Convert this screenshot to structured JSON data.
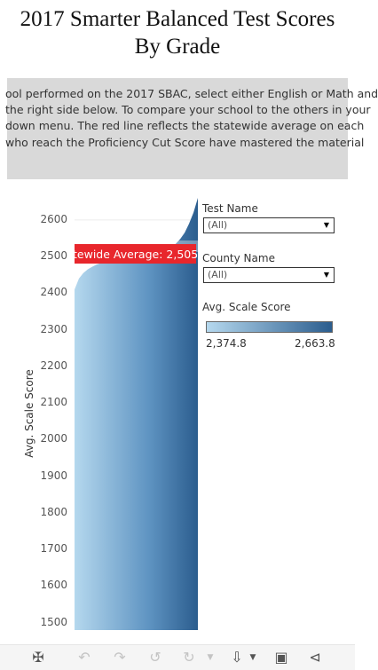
{
  "page": {
    "title_line1": "2017 Smarter Balanced Test Scores",
    "title_line2": "By Grade"
  },
  "description": {
    "lines": [
      "ool performed on the 2017 SBAC, select either English or Math and",
      "the right side below.  To compare your school to the others in your",
      "down menu. The red line reflects the statewide average on each",
      " who reach the Proficiency Cut Score have mastered the material"
    ]
  },
  "chart_data": {
    "type": "area",
    "ylabel": "Avg. Scale Score",
    "ylim": [
      1480,
      2665
    ],
    "yticks": [
      1500,
      1600,
      1700,
      1800,
      1900,
      2000,
      2100,
      2200,
      2300,
      2400,
      2500,
      2600
    ],
    "ytick_labels": [
      "1500",
      "1600",
      "1700",
      "1800",
      "1900",
      "2000",
      "2100",
      "2200",
      "2300",
      "2400",
      "2500",
      "2600"
    ],
    "series": [
      {
        "values": [
          2410,
          2440,
          2455,
          2465,
          2472,
          2478,
          2482,
          2486,
          2489,
          2492,
          2494,
          2496,
          2498,
          2500,
          2502,
          2504,
          2506,
          2508,
          2510,
          2513,
          2516,
          2520,
          2526,
          2535,
          2548,
          2565,
          2590,
          2620,
          2660
        ]
      }
    ],
    "reference_line": {
      "label": "tewide Average: 2,505",
      "value": 2505,
      "color": "#e8262c"
    },
    "grid": true
  },
  "filters": {
    "test_name": {
      "label": "Test Name",
      "value": "(All)"
    },
    "county_name": {
      "label": "County Name",
      "value": "(All)"
    }
  },
  "legend": {
    "title": "Avg. Scale Score",
    "min": "2,374.8",
    "max": "2,663.8",
    "color_low": "#b5d8ee",
    "color_high": "#2b5d8e"
  },
  "toolbar": {
    "icons": [
      "tableau-logo-icon",
      "undo-icon",
      "redo-icon",
      "revert-icon",
      "refresh-icon",
      "download-icon",
      "fullscreen-icon",
      "share-icon"
    ]
  }
}
